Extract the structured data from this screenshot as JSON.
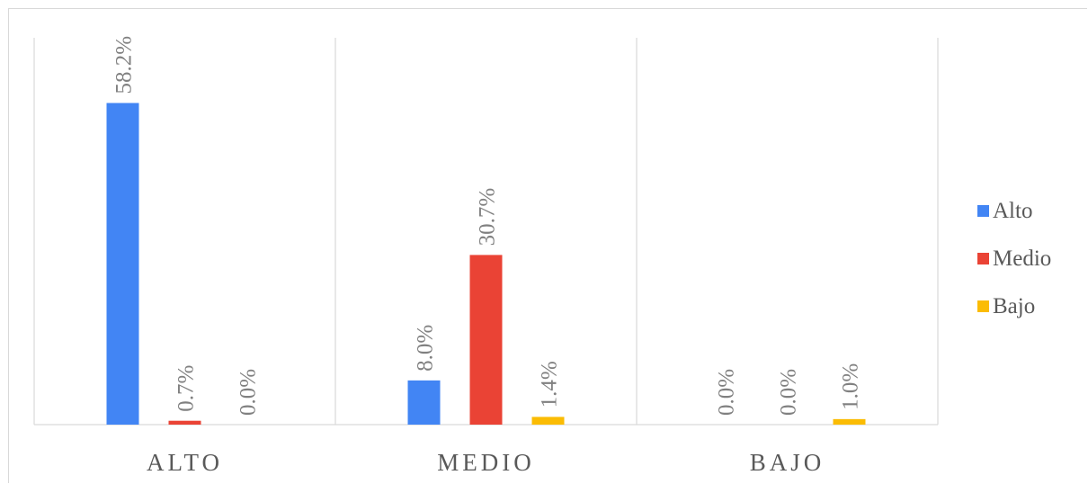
{
  "chart_data": {
    "type": "bar",
    "categories": [
      "ALTO",
      "MEDIO",
      "BAJO"
    ],
    "series": [
      {
        "name": "Alto",
        "color": "#4285F4",
        "values": [
          58.2,
          8.0,
          0.0
        ],
        "labels": [
          "58.2%",
          "8.0%",
          "0.0%"
        ]
      },
      {
        "name": "Medio",
        "color": "#EA4335",
        "values": [
          0.7,
          30.7,
          0.0
        ],
        "labels": [
          "0.7%",
          "30.7%",
          "0.0%"
        ]
      },
      {
        "name": "Bajo",
        "color": "#FBBC04",
        "values": [
          0.0,
          1.4,
          1.0
        ],
        "labels": [
          "0.0%",
          "1.4%",
          "1.0%"
        ]
      }
    ],
    "ylim": [
      0,
      70
    ],
    "grid": "vertical category separators",
    "legend_position": "right"
  }
}
